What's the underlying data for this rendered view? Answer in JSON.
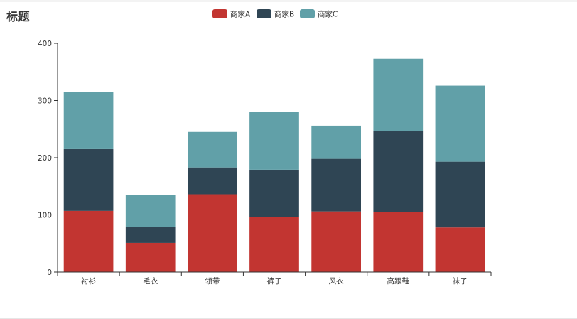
{
  "chart_data": {
    "type": "bar",
    "stacked": true,
    "title": "标题",
    "categories": [
      "衬衫",
      "毛衣",
      "领带",
      "裤子",
      "风衣",
      "高跟鞋",
      "袜子"
    ],
    "series": [
      {
        "name": "商家A",
        "color": "#c23531",
        "values": [
          107,
          51,
          136,
          96,
          106,
          105,
          78
        ]
      },
      {
        "name": "商家B",
        "color": "#2f4554",
        "values": [
          108,
          28,
          47,
          83,
          92,
          142,
          115
        ]
      },
      {
        "name": "商家C",
        "color": "#61a0a8",
        "values": [
          100,
          56,
          62,
          101,
          58,
          126,
          133
        ]
      }
    ],
    "ylim": [
      0,
      400
    ],
    "yticks": [
      0,
      100,
      200,
      300,
      400
    ],
    "grid": false,
    "legend_position": "top-center"
  }
}
